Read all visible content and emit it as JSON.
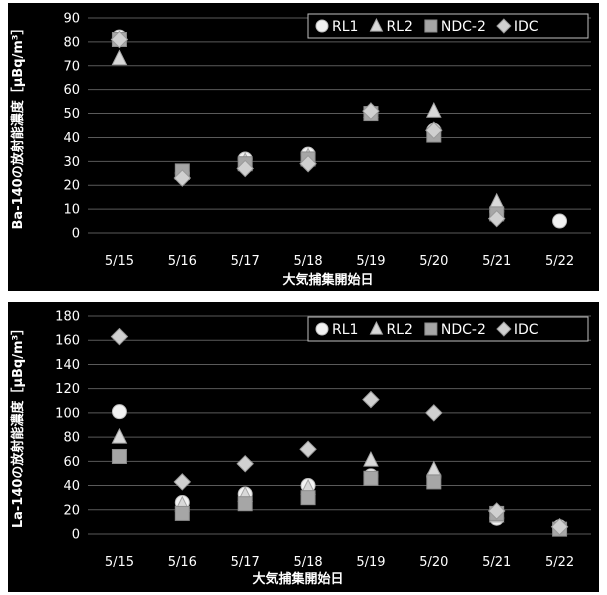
{
  "chart_data": [
    {
      "type": "scatter",
      "xlabel": "大気捕集開始日",
      "ylabel": "Ba-140の放射能濃度［μBq/m³］",
      "categories": [
        "5/15",
        "5/16",
        "5/17",
        "5/18",
        "5/19",
        "5/20",
        "5/21",
        "5/22"
      ],
      "ylim": [
        0,
        90
      ],
      "yticks": [
        0,
        10,
        20,
        30,
        40,
        50,
        60,
        70,
        80,
        90
      ],
      "grid": true,
      "legend_position": "top-right",
      "series": [
        {
          "name": "RL1",
          "marker": "circle",
          "values": [
            82,
            25,
            31,
            33,
            50,
            43,
            9,
            5
          ]
        },
        {
          "name": "RL2",
          "marker": "triangle",
          "values": [
            73,
            25,
            30,
            32,
            51,
            51,
            13,
            null
          ]
        },
        {
          "name": "NDC-2",
          "marker": "square",
          "values": [
            81,
            26,
            29,
            31,
            50,
            41,
            8,
            null
          ]
        },
        {
          "name": "IDC",
          "marker": "diamond",
          "values": [
            81,
            23,
            27,
            29,
            51,
            43,
            6,
            null
          ]
        }
      ]
    },
    {
      "type": "scatter",
      "xlabel": "大気捕集開始日",
      "ylabel": "La-140の放射能濃度［μBq/m³］",
      "categories": [
        "5/15",
        "5/16",
        "5/17",
        "5/18",
        "5/19",
        "5/20",
        "5/21",
        "5/22"
      ],
      "ylim": [
        0,
        180
      ],
      "yticks": [
        0,
        20,
        40,
        60,
        80,
        100,
        120,
        140,
        160,
        180
      ],
      "grid": true,
      "legend_position": "top-right",
      "series": [
        {
          "name": "RL1",
          "marker": "circle",
          "values": [
            101,
            26,
            33,
            40,
            48,
            47,
            13,
            6
          ]
        },
        {
          "name": "RL2",
          "marker": "triangle",
          "values": [
            80,
            24,
            32,
            38,
            61,
            53,
            15,
            5
          ]
        },
        {
          "name": "NDC-2",
          "marker": "square",
          "values": [
            64,
            17,
            25,
            30,
            46,
            43,
            17,
            4
          ]
        },
        {
          "name": "IDC",
          "marker": "diamond",
          "values": [
            163,
            43,
            58,
            70,
            111,
            100,
            19,
            6
          ]
        }
      ]
    }
  ]
}
